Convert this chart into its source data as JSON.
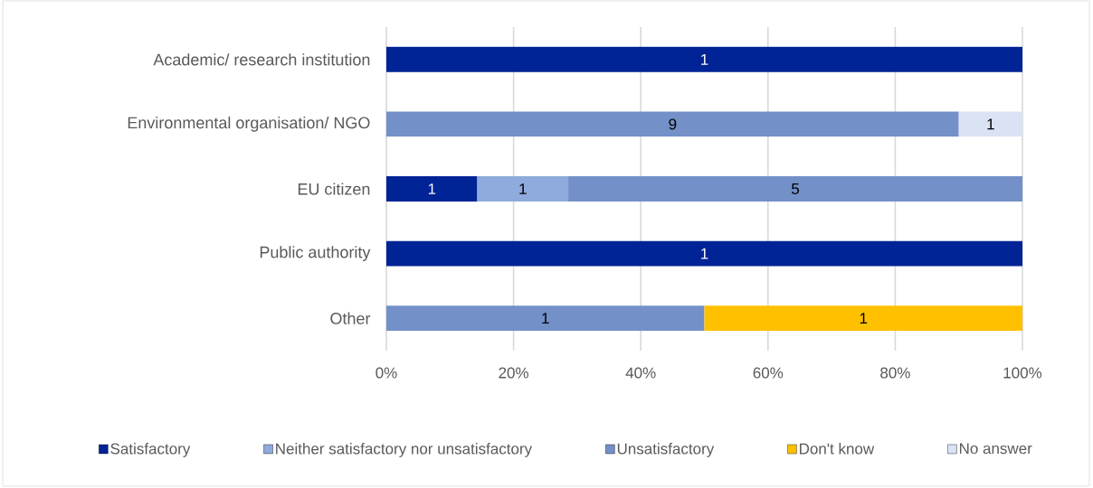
{
  "chart_data": {
    "type": "bar",
    "orientation": "horizontal",
    "stacked": true,
    "categories": [
      "Academic/ research institution",
      "Environmental organisation/ NGO",
      "EU citizen",
      "Public authority",
      "Other"
    ],
    "series": [
      {
        "name": "Satisfactory",
        "color": "#002395",
        "values": [
          100,
          null,
          14.3,
          100,
          null
        ]
      },
      {
        "name": "Neither satisfactory nor unsatisfactory",
        "color": "#8faadc",
        "values": [
          null,
          null,
          14.3,
          null,
          null
        ]
      },
      {
        "name": "Unsatisfactory",
        "color": "#7390c8",
        "values": [
          null,
          90,
          71.4,
          null,
          50
        ]
      },
      {
        "name": "Don't know",
        "color": "#ffc000",
        "values": [
          null,
          null,
          null,
          null,
          50
        ]
      },
      {
        "name": "No answer",
        "color": "#dae3f3",
        "values": [
          null,
          10,
          null,
          null,
          null
        ]
      }
    ],
    "annotations": [
      "1",
      "9",
      "1",
      "1",
      "1",
      "5",
      "1",
      "1",
      "1"
    ],
    "xlim": [
      0,
      100
    ],
    "xticks": [
      {
        "value": 0,
        "label": "0%"
      },
      {
        "value": 20,
        "label": "20%"
      },
      {
        "value": 40,
        "label": "40%"
      },
      {
        "value": 60,
        "label": "60%"
      },
      {
        "value": 80,
        "label": "80%"
      },
      {
        "value": 100,
        "label": "100%"
      }
    ],
    "grid": "x",
    "legend": "bottom"
  }
}
